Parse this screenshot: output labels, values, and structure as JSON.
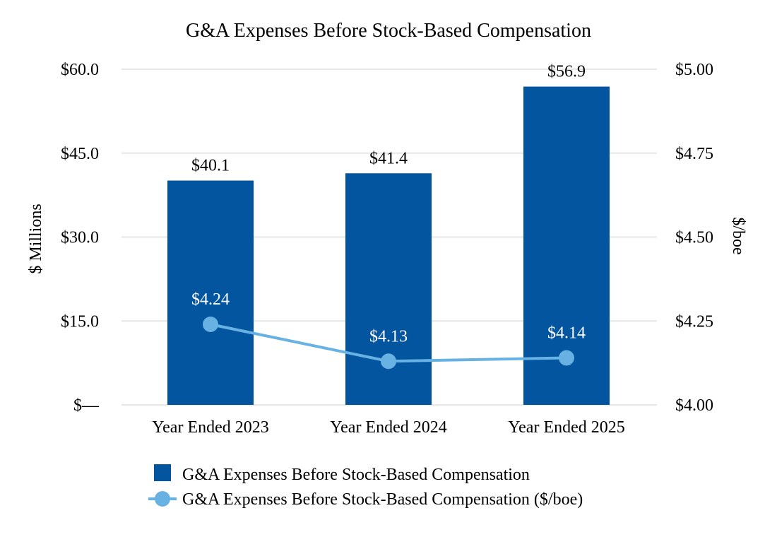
{
  "chart_data": {
    "type": "bar",
    "title": "G&A Expenses Before Stock-Based Compensation",
    "categories": [
      "Year Ended 2023",
      "Year Ended 2024",
      "Year Ended 2025"
    ],
    "series": [
      {
        "name": "G&A Expenses Before Stock-Based Compensation",
        "type": "bar",
        "axis": "left",
        "values": [
          40.1,
          41.4,
          56.9
        ],
        "labels": [
          "$40.1",
          "$41.4",
          "$56.9"
        ],
        "color": "#0455A0"
      },
      {
        "name": "G&A Expenses Before Stock-Based Compensation ($/boe)",
        "type": "line",
        "axis": "right",
        "values": [
          4.24,
          4.13,
          4.14
        ],
        "labels": [
          "$4.24",
          "$4.13",
          "$4.14"
        ],
        "color": "#67B2E3"
      }
    ],
    "left_axis": {
      "title": "$ Millions",
      "ylim": [
        0,
        60
      ],
      "ticks": [
        0,
        15,
        30,
        45,
        60
      ],
      "tick_labels": [
        "$—",
        "$15.0",
        "$30.0",
        "$45.0",
        "$60.0"
      ]
    },
    "right_axis": {
      "title": "$/boe",
      "ylim": [
        4.0,
        5.0
      ],
      "ticks": [
        4.0,
        4.25,
        4.5,
        4.75,
        5.0
      ],
      "tick_labels": [
        "$4.00",
        "$4.25",
        "$4.50",
        "$4.75",
        "$5.00"
      ]
    },
    "grid": true,
    "legend_position": "bottom",
    "gridline_color": "#E6E6E6"
  }
}
